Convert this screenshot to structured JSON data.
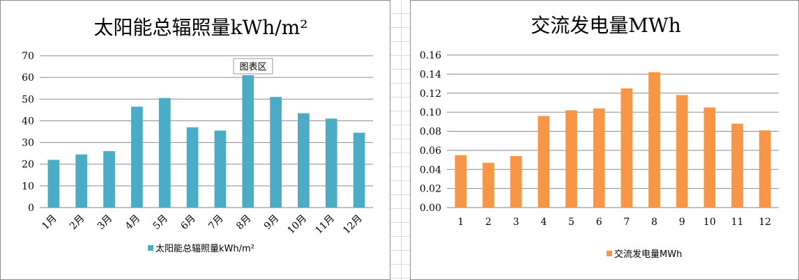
{
  "chart_data": [
    {
      "type": "bar",
      "title": "太阳能总辐照量kWh/m²",
      "categories": [
        "1月",
        "2月",
        "3月",
        "4月",
        "5月",
        "6月",
        "7月",
        "8月",
        "9月",
        "10月",
        "11月",
        "12月"
      ],
      "series": [
        {
          "name": "太阳能总辐照量kWh/m²",
          "values": [
            22,
            24.5,
            26,
            46.5,
            50.5,
            37,
            35.5,
            61,
            51,
            43.5,
            41,
            34.5
          ],
          "color": "#4bacc6"
        }
      ],
      "ylim": [
        0,
        70
      ],
      "yticks": [
        "0",
        "10",
        "20",
        "30",
        "40",
        "50",
        "60",
        "70"
      ],
      "grid": true,
      "legend_position": "bottom",
      "tooltip": "图表区"
    },
    {
      "type": "bar",
      "title": "交流发电量MWh",
      "categories": [
        "1",
        "2",
        "3",
        "4",
        "5",
        "6",
        "7",
        "8",
        "9",
        "10",
        "11",
        "12"
      ],
      "series": [
        {
          "name": "交流发电量MWh",
          "values": [
            0.055,
            0.047,
            0.054,
            0.096,
            0.102,
            0.104,
            0.125,
            0.142,
            0.118,
            0.105,
            0.088,
            0.081
          ],
          "color": "#f79646"
        }
      ],
      "ylim": [
        0,
        0.16
      ],
      "yticks": [
        "0.00",
        "0.02",
        "0.04",
        "0.06",
        "0.08",
        "0.10",
        "0.12",
        "0.14",
        "0.16"
      ],
      "grid": true,
      "legend_position": "bottom"
    }
  ]
}
